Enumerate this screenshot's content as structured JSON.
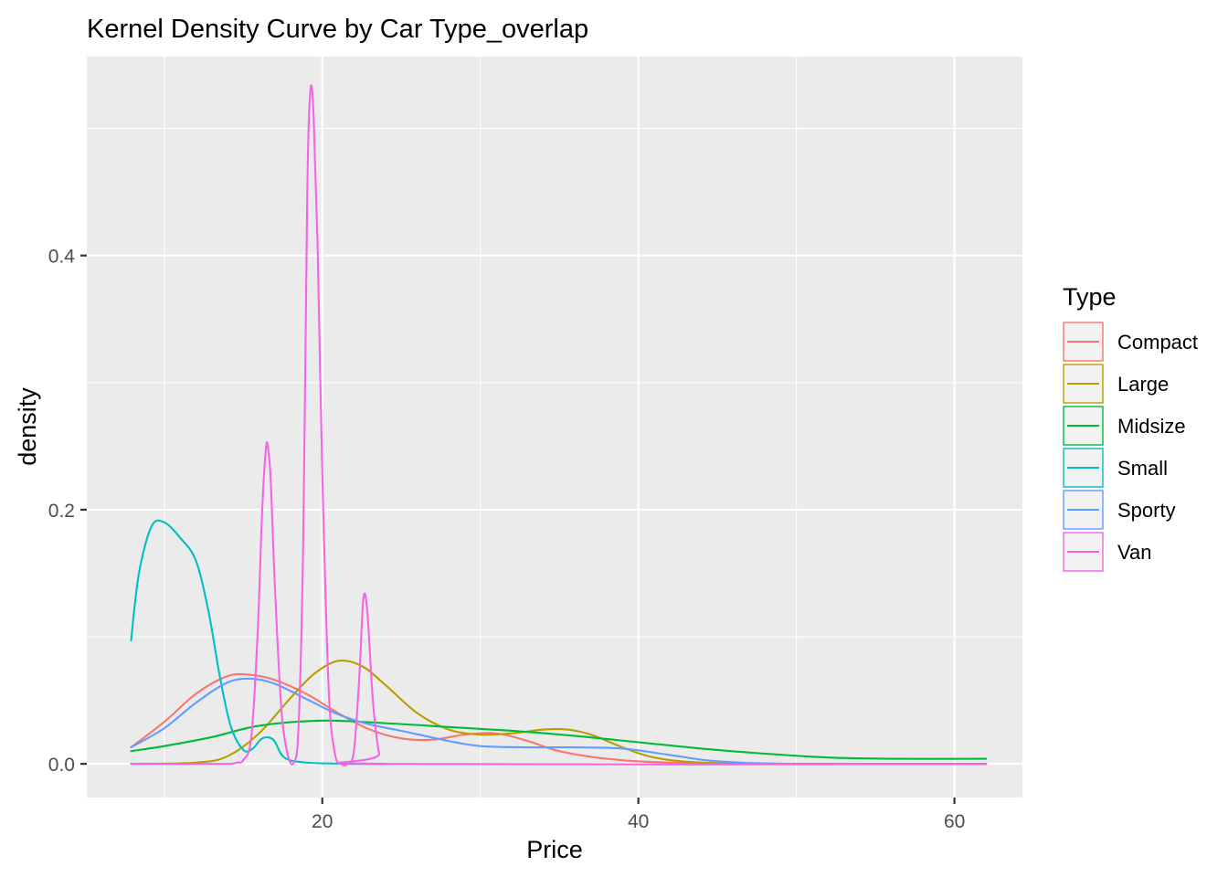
{
  "chart_data": {
    "type": "line",
    "title": "Kernel Density Curve by Car Type_overlap",
    "xlabel": "Price",
    "ylabel": "density",
    "xlim": [
      5.1,
      64.3
    ],
    "ylim": [
      -0.0265,
      0.5565
    ],
    "xticks": [
      20,
      40,
      60
    ],
    "xtick_labels": [
      "20",
      "40",
      "60"
    ],
    "yticks": [
      0.0,
      0.2,
      0.4
    ],
    "ytick_labels": [
      "0.0",
      "0.2",
      "0.4"
    ],
    "grid": true,
    "legend": {
      "title": "Type",
      "position": "right"
    },
    "series": [
      {
        "name": "Compact",
        "color": "#F8766D",
        "x": [
          7.9,
          10,
          12,
          14,
          15.5,
          17,
          19,
          21,
          23,
          25,
          27,
          29,
          31,
          33,
          35,
          38,
          42,
          50,
          62
        ],
        "y": [
          0.013,
          0.033,
          0.055,
          0.069,
          0.07,
          0.066,
          0.055,
          0.04,
          0.027,
          0.02,
          0.019,
          0.023,
          0.024,
          0.018,
          0.01,
          0.004,
          0.001,
          0.0,
          0.0
        ]
      },
      {
        "name": "Large",
        "color": "#B79F00",
        "x": [
          7.9,
          12,
          14,
          16,
          18,
          19.5,
          21,
          22.5,
          24,
          26,
          28,
          30,
          32,
          34,
          35.5,
          37,
          39,
          41,
          44,
          50,
          62
        ],
        "y": [
          0.0,
          0.001,
          0.006,
          0.024,
          0.052,
          0.071,
          0.081,
          0.077,
          0.062,
          0.04,
          0.027,
          0.023,
          0.024,
          0.027,
          0.027,
          0.023,
          0.013,
          0.005,
          0.001,
          0.0,
          0.0
        ]
      },
      {
        "name": "Midsize",
        "color": "#00BA38",
        "x": [
          7.9,
          10,
          13,
          16,
          20,
          24,
          28,
          32,
          36,
          40,
          44,
          48,
          52,
          56,
          62
        ],
        "y": [
          0.01,
          0.014,
          0.021,
          0.03,
          0.034,
          0.032,
          0.029,
          0.026,
          0.022,
          0.017,
          0.012,
          0.008,
          0.005,
          0.004,
          0.004
        ]
      },
      {
        "name": "Small",
        "color": "#00BFC4",
        "x": [
          7.9,
          8.4,
          9.2,
          10.0,
          11.0,
          12.0,
          12.8,
          13.5,
          14.2,
          15.0,
          15.6,
          16.2,
          16.9,
          17.6,
          19,
          22,
          24
        ],
        "y": [
          0.097,
          0.15,
          0.187,
          0.19,
          0.178,
          0.16,
          0.12,
          0.07,
          0.03,
          0.011,
          0.012,
          0.02,
          0.019,
          0.005,
          0.001,
          0.0,
          0.0
        ]
      },
      {
        "name": "Sporty",
        "color": "#619CFF",
        "x": [
          7.9,
          10,
          12,
          14,
          15.5,
          17,
          19,
          21,
          23,
          25,
          28,
          30,
          33,
          36,
          39,
          42,
          45,
          50,
          62
        ],
        "y": [
          0.013,
          0.028,
          0.048,
          0.064,
          0.067,
          0.063,
          0.051,
          0.039,
          0.031,
          0.026,
          0.018,
          0.014,
          0.013,
          0.013,
          0.012,
          0.007,
          0.002,
          0.0,
          0.0
        ]
      },
      {
        "name": "Van",
        "color": "#F564E3",
        "x": [
          7.9,
          13.2,
          14.2,
          14.6,
          15.0,
          15.5,
          15.9,
          16.2,
          16.45,
          16.6,
          16.75,
          17.0,
          17.4,
          17.8,
          18.2,
          18.5,
          18.8,
          19.05,
          19.25,
          19.45,
          19.7,
          20.0,
          20.4,
          20.8,
          21.2,
          21.6,
          22.0,
          22.35,
          22.6,
          22.85,
          23.2,
          23.6,
          24.0,
          62
        ],
        "y": [
          0.0,
          0.0,
          0.0,
          0.001,
          0.003,
          0.02,
          0.1,
          0.2,
          0.25,
          0.245,
          0.22,
          0.14,
          0.045,
          0.008,
          0.001,
          0.03,
          0.18,
          0.45,
          0.53,
          0.51,
          0.41,
          0.23,
          0.06,
          0.008,
          0.0,
          0.0,
          0.01,
          0.07,
          0.13,
          0.12,
          0.05,
          0.008,
          0.0,
          0.0
        ]
      }
    ]
  }
}
